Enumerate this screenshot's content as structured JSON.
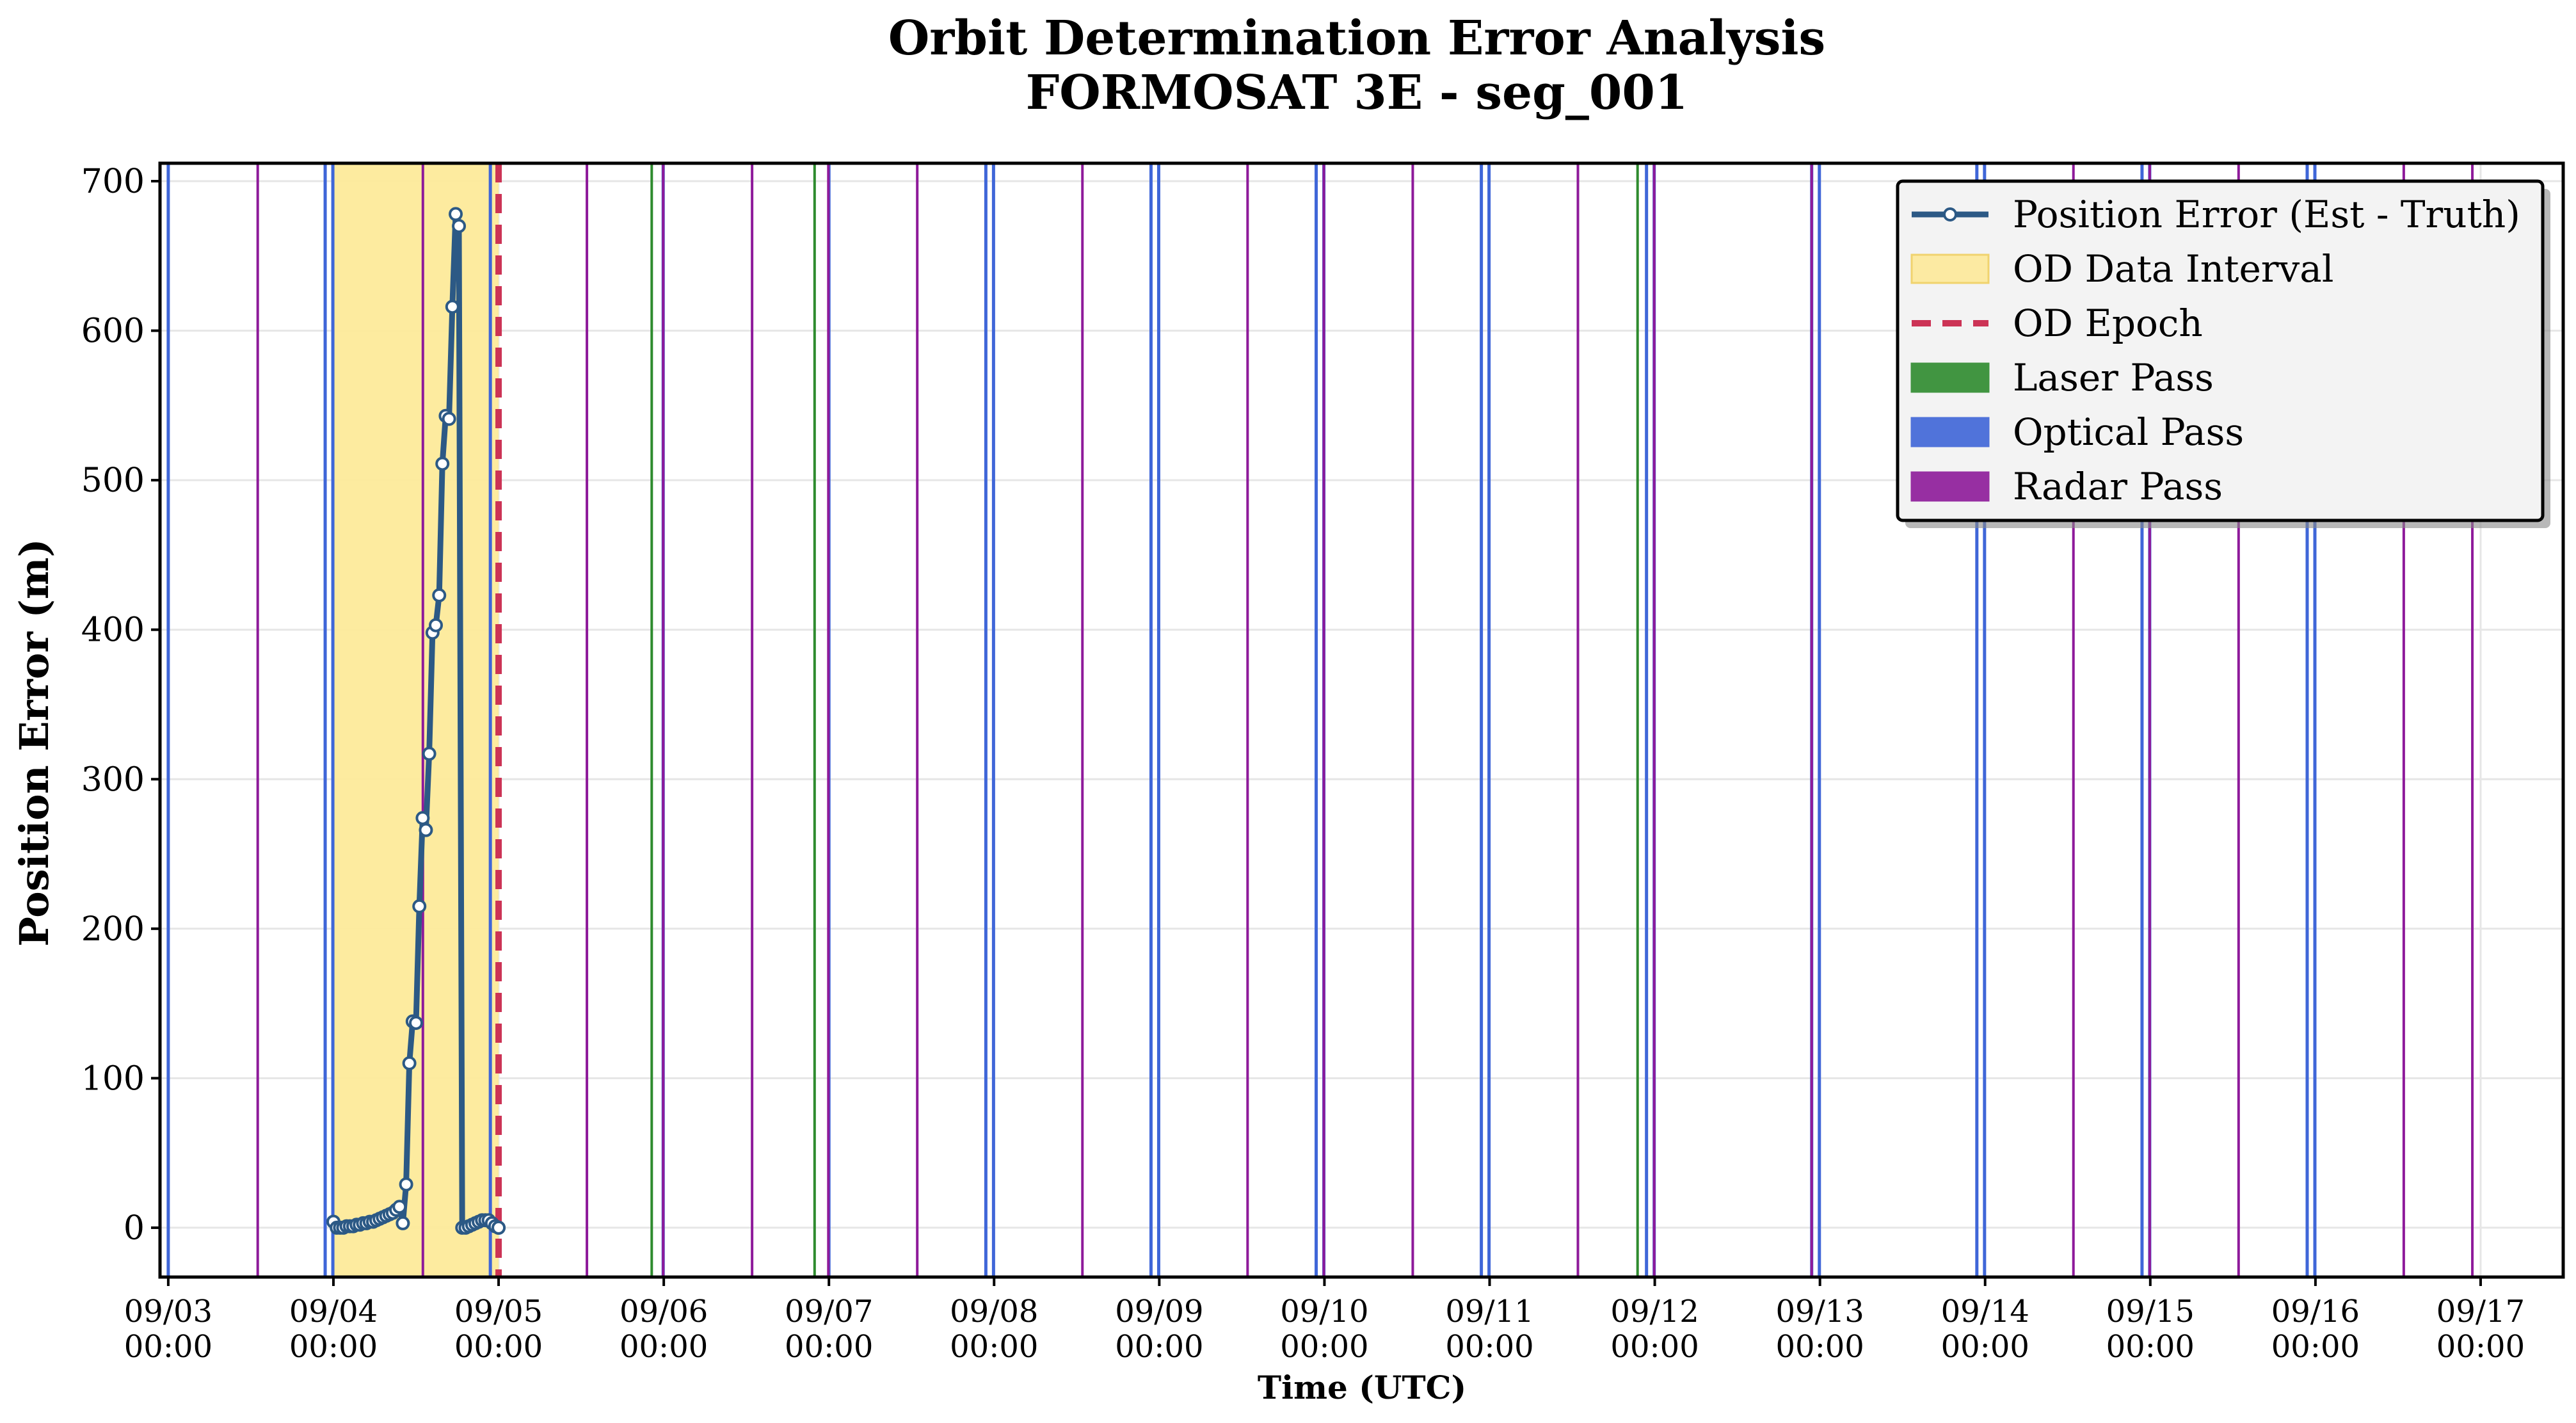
{
  "chart_data": {
    "type": "line",
    "title_line1": "Orbit Determination Error Analysis",
    "title_line2": "FORMOSAT 3E - seg_001",
    "xlabel": "Time (UTC)",
    "ylabel": "Position Error (m)",
    "xlim": [
      "09/02 22:48",
      "09/17 12:00"
    ],
    "ylim": [
      -33,
      712
    ],
    "grid": true,
    "legend_position": "top-right",
    "y_ticks": [
      0,
      100,
      200,
      300,
      400,
      500,
      600,
      700
    ],
    "x_ticks": [
      {
        "t": "09/03 00:00",
        "date": "09/03",
        "time": "00:00"
      },
      {
        "t": "09/04 00:00",
        "date": "09/04",
        "time": "00:00"
      },
      {
        "t": "09/05 00:00",
        "date": "09/05",
        "time": "00:00"
      },
      {
        "t": "09/06 00:00",
        "date": "09/06",
        "time": "00:00"
      },
      {
        "t": "09/07 00:00",
        "date": "09/07",
        "time": "00:00"
      },
      {
        "t": "09/08 00:00",
        "date": "09/08",
        "time": "00:00"
      },
      {
        "t": "09/09 00:00",
        "date": "09/09",
        "time": "00:00"
      },
      {
        "t": "09/10 00:00",
        "date": "09/10",
        "time": "00:00"
      },
      {
        "t": "09/11 00:00",
        "date": "09/11",
        "time": "00:00"
      },
      {
        "t": "09/12 00:00",
        "date": "09/12",
        "time": "00:00"
      },
      {
        "t": "09/13 00:00",
        "date": "09/13",
        "time": "00:00"
      },
      {
        "t": "09/14 00:00",
        "date": "09/14",
        "time": "00:00"
      },
      {
        "t": "09/15 00:00",
        "date": "09/15",
        "time": "00:00"
      },
      {
        "t": "09/16 00:00",
        "date": "09/16",
        "time": "00:00"
      },
      {
        "t": "09/17 00:00",
        "date": "09/17",
        "time": "00:00"
      }
    ],
    "od_data_interval": [
      "09/04 00:00",
      "09/05 00:00"
    ],
    "od_epoch": "09/05 00:00",
    "series": [
      {
        "name": "Position Error (Est - Truth)",
        "color": "#2c5985",
        "x": [
          "09/04 00:00",
          "09/04 00:29",
          "09/04 00:58",
          "09/04 01:26",
          "09/04 01:55",
          "09/04 02:24",
          "09/04 02:53",
          "09/04 03:22",
          "09/04 03:50",
          "09/04 04:19",
          "09/04 04:48",
          "09/04 05:17",
          "09/04 05:46",
          "09/04 06:14",
          "09/04 06:43",
          "09/04 07:12",
          "09/04 07:41",
          "09/04 08:10",
          "09/04 08:38",
          "09/04 09:07",
          "09/04 09:36",
          "09/04 10:05",
          "09/04 10:34",
          "09/04 11:02",
          "09/04 11:31",
          "09/04 12:00",
          "09/04 12:29",
          "09/04 12:58",
          "09/04 13:26",
          "09/04 13:55",
          "09/04 14:24",
          "09/04 14:53",
          "09/04 15:22",
          "09/04 15:50",
          "09/04 16:19",
          "09/04 16:48",
          "09/04 17:17",
          "09/04 17:46",
          "09/04 18:14",
          "09/04 18:43",
          "09/04 19:12",
          "09/04 19:41",
          "09/04 20:10",
          "09/04 20:38",
          "09/04 21:07",
          "09/04 21:36",
          "09/04 22:05",
          "09/04 22:34",
          "09/04 23:02",
          "09/04 23:31",
          "09/05 00:00",
          "09/05 00:00"
        ],
        "y": [
          4,
          0,
          0,
          0,
          1,
          1,
          1,
          2,
          2,
          3,
          3,
          4,
          4,
          5,
          6,
          7,
          8,
          9,
          10,
          12,
          14,
          3,
          29,
          110,
          138,
          137,
          215,
          274,
          266,
          317,
          398,
          403,
          423,
          511,
          543,
          541,
          616,
          678,
          670,
          0,
          0,
          1,
          2,
          3,
          4,
          5,
          5,
          5,
          3,
          1,
          0,
          0
        ]
      }
    ],
    "pass_colors": {
      "laser": "#2e8b2e",
      "optical": "#3f66d8",
      "radar": "#8e1a9a",
      "line": "#2c5985",
      "epoch": "#cc3355",
      "interval": "#fdea9a"
    },
    "passes": {
      "optical": [
        "09/03 00:00",
        "09/03 22:48",
        "09/03 23:55",
        "09/04 22:48",
        "09/05 23:55",
        "09/07 00:00",
        "09/07 22:48",
        "09/07 23:55",
        "09/08 22:48",
        "09/08 23:55",
        "09/09 22:48",
        "09/09 23:55",
        "09/10 22:48",
        "09/10 23:55",
        "09/11 22:48",
        "09/11 23:55",
        "09/12 22:48",
        "09/12 23:55",
        "09/13 22:48",
        "09/13 23:55",
        "09/14 22:48",
        "09/14 23:55",
        "09/15 22:48",
        "09/15 23:55"
      ],
      "radar": [
        "09/03 13:00",
        "09/04 13:00",
        "09/05 12:50",
        "09/05 23:55",
        "09/06 12:50",
        "09/06 23:55",
        "09/07 12:50",
        "09/08 12:50",
        "09/09 12:50",
        "09/09 23:55",
        "09/10 12:50",
        "09/11 12:50",
        "09/11 23:55",
        "09/12 22:48",
        "09/14 12:50",
        "09/14 23:55",
        "09/15 12:50",
        "09/16 12:50",
        "09/16 22:48"
      ],
      "laser": [
        "09/05 22:15",
        "09/06 21:55",
        "09/11 21:30"
      ]
    },
    "legend": [
      {
        "label": "Position Error (Est - Truth)",
        "kind": "line"
      },
      {
        "label": "OD Data Interval",
        "kind": "interval"
      },
      {
        "label": "OD Epoch",
        "kind": "epoch"
      },
      {
        "label": "Laser Pass",
        "kind": "laser"
      },
      {
        "label": "Optical Pass",
        "kind": "optical"
      },
      {
        "label": "Radar Pass",
        "kind": "radar"
      }
    ]
  }
}
